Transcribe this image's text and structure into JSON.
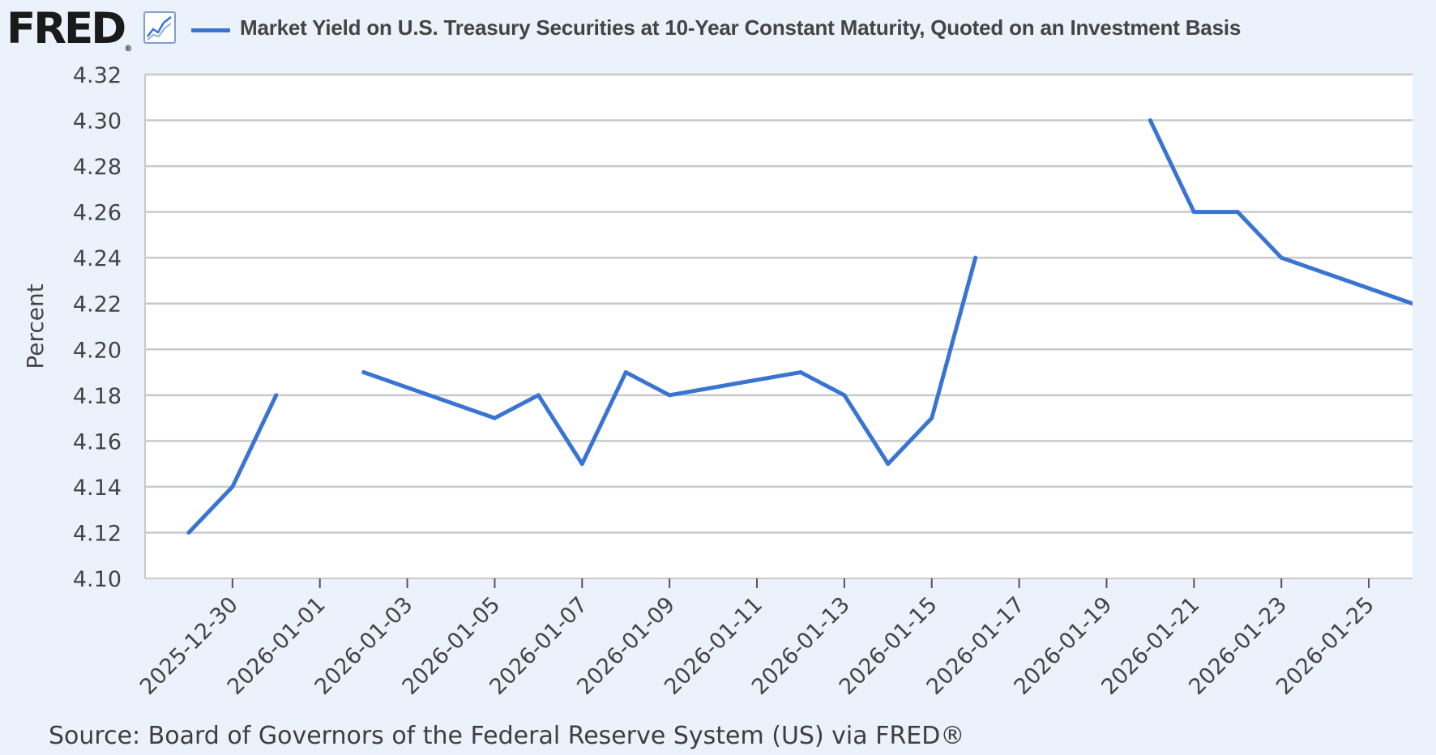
{
  "header": {
    "logo_text": "FRED",
    "logo_mark": "®",
    "graph_icon": "line-graph-icon",
    "series_title": "Market Yield on U.S. Treasury Securities at 10-Year Constant Maturity, Quoted on an Investment Basis"
  },
  "source": "Source: Board of Governors of the Federal Reserve System (US) via FRED®",
  "colors": {
    "background": "#ecf2fb",
    "plot_background": "#ffffff",
    "series": "#3a74d3",
    "grid": "#c9c9c9",
    "text": "#444444"
  },
  "chart_data": {
    "type": "line",
    "title": "Market Yield on U.S. Treasury Securities at 10-Year Constant Maturity, Quoted on an Investment Basis",
    "xlabel": "",
    "ylabel": "Percent",
    "ylim": [
      4.1,
      4.32
    ],
    "y_ticks": [
      "4.10",
      "4.12",
      "4.14",
      "4.16",
      "4.18",
      "4.20",
      "4.22",
      "4.24",
      "4.26",
      "4.28",
      "4.30",
      "4.32"
    ],
    "xlim": [
      "2025-12-28",
      "2026-01-26"
    ],
    "x_ticks": [
      "2025-12-30",
      "2026-01-01",
      "2026-01-03",
      "2026-01-05",
      "2026-01-07",
      "2026-01-09",
      "2026-01-11",
      "2026-01-13",
      "2026-01-15",
      "2026-01-17",
      "2026-01-19",
      "2026-01-21",
      "2026-01-23",
      "2026-01-25"
    ],
    "grid": true,
    "legend": "top",
    "series": [
      {
        "name": "Market Yield on U.S. Treasury Securities at 10-Year Constant Maturity, Quoted on an Investment Basis",
        "x": [
          "2025-12-29",
          "2025-12-30",
          "2025-12-31",
          "2026-01-01",
          "2026-01-02",
          "2026-01-05",
          "2026-01-06",
          "2026-01-07",
          "2026-01-08",
          "2026-01-09",
          "2026-01-12",
          "2026-01-13",
          "2026-01-14",
          "2026-01-15",
          "2026-01-16",
          "2026-01-19",
          "2026-01-20",
          "2026-01-21",
          "2026-01-22",
          "2026-01-23",
          "2026-01-26"
        ],
        "values": [
          4.12,
          4.14,
          4.18,
          null,
          4.19,
          4.17,
          4.18,
          4.15,
          4.19,
          4.18,
          4.19,
          4.18,
          4.15,
          4.17,
          4.24,
          null,
          4.3,
          4.26,
          4.26,
          4.24,
          4.22
        ]
      }
    ]
  }
}
